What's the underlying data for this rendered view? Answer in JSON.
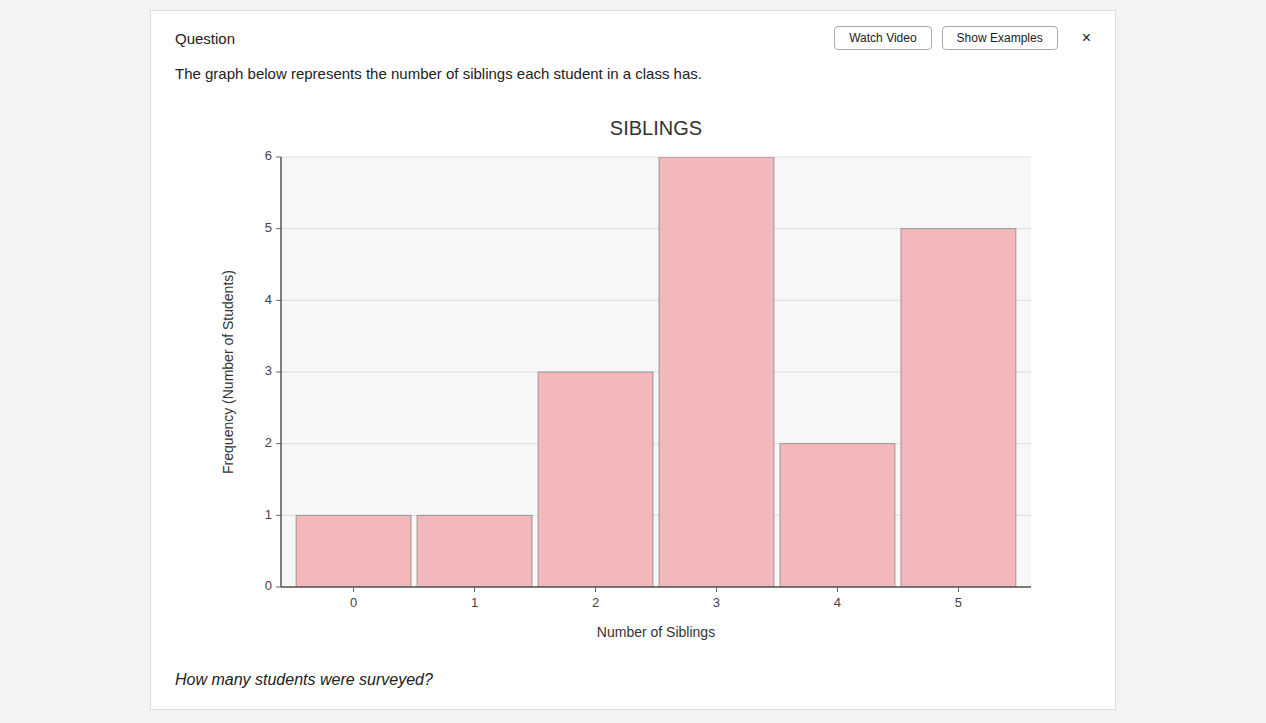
{
  "chart_data": {
    "type": "bar",
    "title": "SIBLINGS",
    "xlabel": "Number of Siblings",
    "ylabel": "Frequency (Number of Students)",
    "categories": [
      0,
      1,
      2,
      3,
      4,
      5
    ],
    "values": [
      1,
      1,
      3,
      6,
      2,
      5
    ],
    "color": "#f2b8bc",
    "xlim": [
      -0.6,
      5.6
    ],
    "xticks": [
      0,
      1,
      2,
      3,
      4,
      5
    ],
    "ylim": [
      0,
      6
    ],
    "yticks": [
      0,
      1,
      2,
      3,
      4,
      5,
      6
    ],
    "grid": true,
    "annotations": [
      "Question",
      "Watch Video",
      "Show Examples",
      "×",
      "The graph below represents the number of siblings each student in a class has.",
      "How many students were surveyed?"
    ]
  }
}
